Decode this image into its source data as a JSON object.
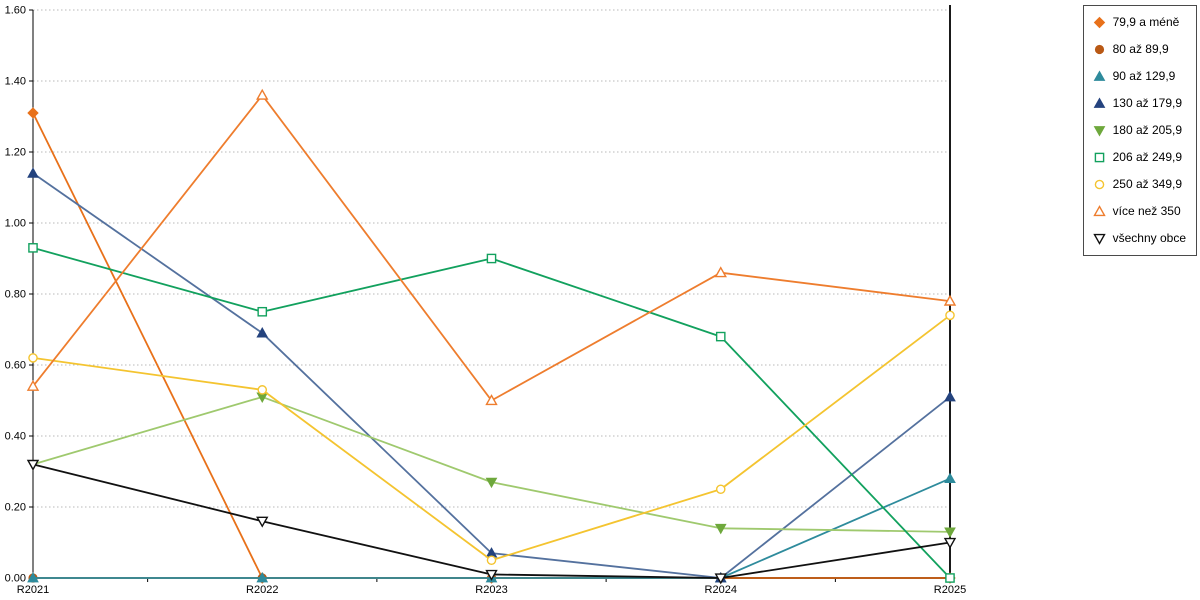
{
  "chart_data": {
    "type": "line",
    "title": "",
    "xlabel": "",
    "ylabel": "",
    "categories": [
      "R2021",
      "R2022",
      "R2023",
      "R2024",
      "R2025"
    ],
    "ylim": [
      0,
      1.6
    ],
    "yticks": [
      "0.00",
      "0.20",
      "0.40",
      "0.60",
      "0.80",
      "1.00",
      "1.20",
      "1.40",
      "1.60"
    ],
    "grid": "horizontal-dotted",
    "legend_position": "top-right",
    "series": [
      {
        "name": "79,9 a méně",
        "marker": "diamond-filled",
        "color": "#E8711A",
        "marker_color": "#E8711A",
        "values": [
          1.31,
          0.0,
          0.0,
          0.0,
          0.0
        ]
      },
      {
        "name": "80 až 89,9",
        "marker": "circle-filled",
        "color": "#B95915",
        "marker_color": "#B95915",
        "values": [
          0.0,
          0.0,
          0.0,
          0.0,
          0.0
        ]
      },
      {
        "name": "90 až 129,9",
        "marker": "triangle-filled",
        "color": "#2E8B9C",
        "marker_color": "#2E8B9C",
        "values": [
          0.0,
          0.0,
          0.0,
          0.0,
          0.28
        ]
      },
      {
        "name": "130 až 179,9",
        "marker": "triangle-filled",
        "color": "#54719E",
        "marker_color": "#24437E",
        "values": [
          1.14,
          0.69,
          0.07,
          0.0,
          0.51
        ]
      },
      {
        "name": "180 až 205,9",
        "marker": "triangle-down-filled",
        "color": "#9FC96E",
        "marker_color": "#6EA83C",
        "values": [
          0.32,
          0.51,
          0.27,
          0.14,
          0.13
        ]
      },
      {
        "name": "206 až 249,9",
        "marker": "square-open",
        "color": "#12A15E",
        "marker_color": "#12A15E",
        "values": [
          0.93,
          0.75,
          0.9,
          0.68,
          0.0
        ]
      },
      {
        "name": "250 až 349,9",
        "marker": "circle-open",
        "color": "#F4C430",
        "marker_color": "#F4C430",
        "values": [
          0.62,
          0.53,
          0.05,
          0.25,
          0.74
        ]
      },
      {
        "name": "více než 350",
        "marker": "triangle-open",
        "color": "#EE7D2E",
        "marker_color": "#EE7D2E",
        "values": [
          0.54,
          1.36,
          0.5,
          0.86,
          0.78
        ]
      },
      {
        "name": "všechny obce",
        "marker": "triangle-down-open",
        "color": "#111111",
        "marker_color": "#111111",
        "values": [
          0.32,
          0.16,
          0.01,
          0.0,
          0.1
        ]
      }
    ]
  }
}
